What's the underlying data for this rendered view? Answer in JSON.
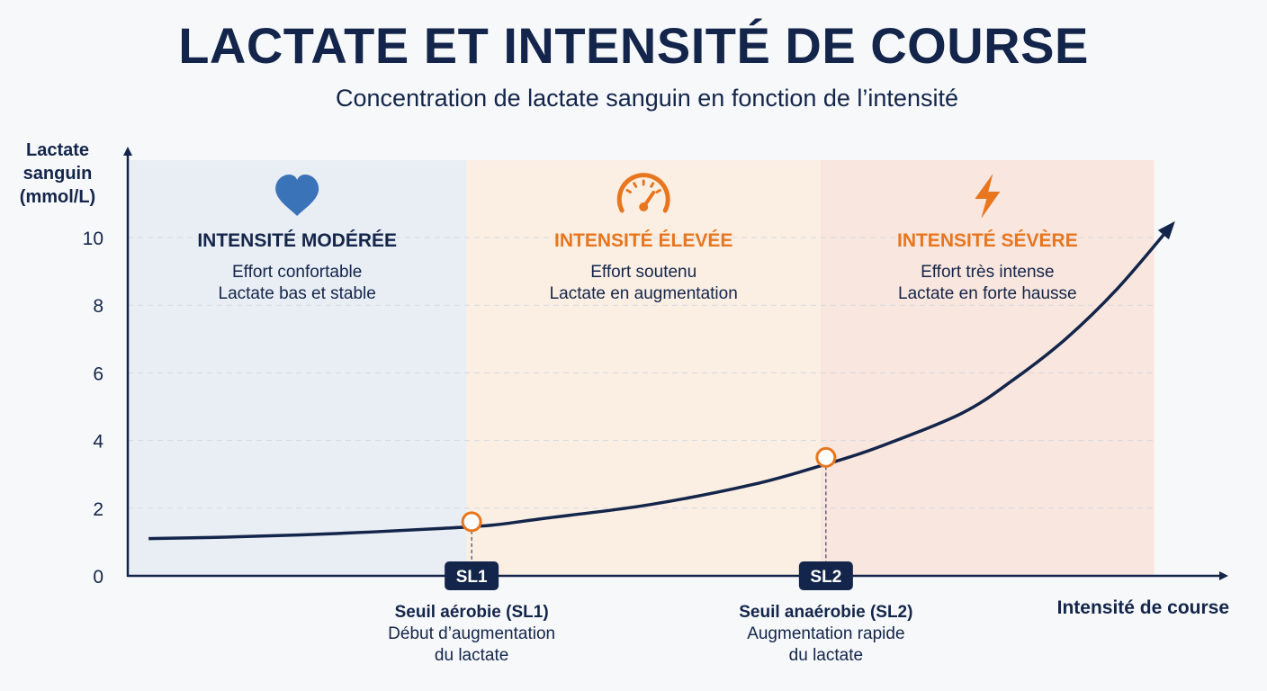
{
  "title": "LACTATE ET INTENSITÉ DE COURSE",
  "subtitle": "Concentration de lactate sanguin en fonction de l’intensité",
  "colors": {
    "navy": "#13254a",
    "blue": "#3b73b9",
    "orange": "#e8761f",
    "zone_moderate": "#e9edf4",
    "zone_high": "#fbefe4",
    "zone_severe": "#f9e6de"
  },
  "chart_data": {
    "type": "line",
    "ylabel": [
      "Lactate",
      "sanguin",
      "(mmol/L)"
    ],
    "xlabel": "Intensité de course",
    "ylim": [
      0,
      10
    ],
    "yticks": [
      "0",
      "2",
      "4",
      "6",
      "8",
      "10"
    ],
    "grid": true,
    "xlim": [
      0,
      1
    ],
    "series": [
      {
        "x": [
          0.02,
          0.1,
          0.2,
          0.3,
          0.35,
          0.4,
          0.5,
          0.6,
          0.67,
          0.72,
          0.8,
          0.85,
          0.9,
          0.95,
          1.0
        ],
        "y": [
          1.1,
          1.15,
          1.25,
          1.4,
          1.5,
          1.7,
          2.1,
          2.7,
          3.3,
          3.8,
          4.8,
          5.8,
          7.0,
          8.5,
          10.3
        ]
      }
    ],
    "zones": [
      {
        "icon": "heart-icon",
        "title": "INTENSITÉ MODÉRÉE",
        "line1": "Effort confortable",
        "line2": "Lactate bas et stable",
        "x_start": 0.0,
        "x_end": 0.325
      },
      {
        "icon": "speedometer-icon",
        "title": "INTENSITÉ ÉLEVÉE",
        "line1": "Effort soutenu",
        "line2": "Lactate en augmentation",
        "x_start": 0.325,
        "x_end": 0.665
      },
      {
        "icon": "lightning-icon",
        "title": "INTENSITÉ SÉVÈRE",
        "line1": "Effort très intense",
        "line2": "Lactate en forte hausse",
        "x_start": 0.665,
        "x_end": 0.985
      }
    ],
    "thresholds": [
      {
        "badge": "SL1",
        "x": 0.33,
        "y": 1.6,
        "label": "Seuil aérobie (SL1)",
        "desc1": "Début d’augmentation",
        "desc2": "du lactate"
      },
      {
        "badge": "SL2",
        "x": 0.67,
        "y": 3.5,
        "label": "Seuil anaérobie (SL2)",
        "desc1": "Augmentation rapide",
        "desc2": "du lactate"
      }
    ]
  }
}
